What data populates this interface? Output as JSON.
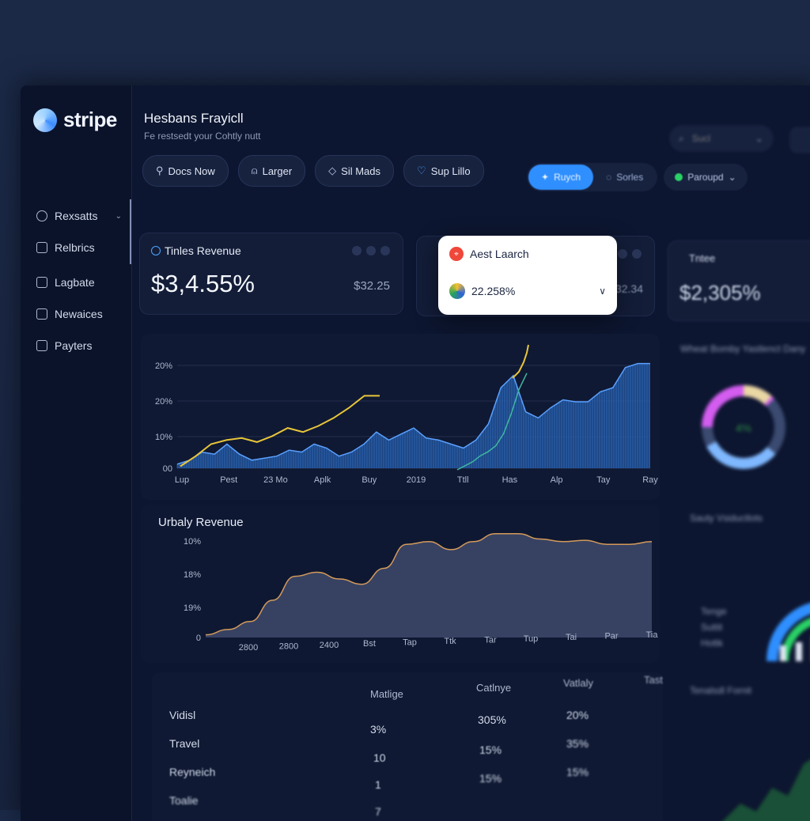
{
  "brand": {
    "name": "stripe"
  },
  "header": {
    "title": "Hesbans Frayicll",
    "subtitle": "Fe restsedt your Cohtly nutt"
  },
  "toolbar": {
    "pills": [
      {
        "label": "Docs Now",
        "icon": "wrench-icon"
      },
      {
        "label": "Larger",
        "icon": "bell-icon"
      },
      {
        "label": "Sil Mads",
        "icon": "diamond-icon"
      },
      {
        "label": "Sup Lillo",
        "icon": "heart-icon"
      }
    ]
  },
  "topbar": {
    "segment": [
      "Ruych",
      "Sorles"
    ],
    "status": "Paroupd",
    "search_placeholder": "Sucl"
  },
  "sidebar": {
    "items": [
      {
        "label": "Rexsatts",
        "icon": "target-icon"
      },
      {
        "label": "Relbrics",
        "icon": "document-icon"
      },
      {
        "label": "Lagbate",
        "icon": "clipboard-icon"
      },
      {
        "label": "Newaices",
        "icon": "card-icon"
      },
      {
        "label": "Payters",
        "icon": "wallet-icon"
      }
    ]
  },
  "cards": {
    "revenue": {
      "label": "Tinles Revenue",
      "value": "$3,4.55%",
      "secondary": "$32.25"
    },
    "middle": {
      "secondary": "32.34"
    },
    "right": {
      "label": "Tntee",
      "value": "$2,305%"
    }
  },
  "popup": {
    "title": "Aest Laarch",
    "value": "22.258%"
  },
  "chart1": {
    "y_ticks": [
      "20%",
      "20%",
      "10%",
      "00"
    ],
    "x_ticks": [
      "Lup",
      "Pest",
      "23 Mo",
      "Aplk",
      "Buy",
      "2019",
      "Ttll",
      "Has",
      "Alp",
      "Tay",
      "Ray"
    ]
  },
  "chart2": {
    "title": "Urbaly Revenue",
    "y_ticks": [
      "10%",
      "18%",
      "19%",
      "0"
    ],
    "x_ticks": [
      "2800",
      "2800",
      "2400",
      "Bst",
      "Tap",
      "Ttk",
      "Tar",
      "Tup",
      "Tai",
      "Par",
      "Tia"
    ]
  },
  "right_panel": {
    "donut_title": "Wheat Bomby Yastlenct Dany",
    "donut_center": "4%",
    "gauge_title": "Sauty Vsiductlots",
    "gauge_labels": [
      "Tenge",
      "Suttit",
      "Hottk"
    ],
    "bottom_title": "Tenalsdl Fornit"
  },
  "table": {
    "headers": [
      "Matlige",
      "Catlnye",
      "Vatlaly",
      "Tast"
    ],
    "rows": [
      {
        "label": "Vidisl",
        "values": [
          "3%",
          "305%",
          "20%"
        ]
      },
      {
        "label": "Travel",
        "values": [
          "10",
          "15%",
          "35%"
        ]
      },
      {
        "label": "Reyneich",
        "values": [
          "1",
          "15%",
          "15%"
        ]
      },
      {
        "label": "Toalie",
        "values": [
          "7",
          "",
          ""
        ]
      }
    ]
  },
  "chart_data": [
    {
      "type": "area",
      "y_tick_labels": [
        "20%",
        "20%",
        "10%",
        "00"
      ],
      "x_tick_labels": [
        "Lup",
        "Pest",
        "23 Mo",
        "Aplk",
        "Buy",
        "2019",
        "Ttll",
        "Has",
        "Alp",
        "Tay",
        "Ray"
      ],
      "series": [
        {
          "values": [
            2,
            4,
            8,
            7,
            12,
            7,
            4,
            5,
            6,
            9,
            8,
            12,
            10,
            6,
            8,
            12,
            18,
            14,
            17,
            20,
            15,
            14,
            12,
            10,
            14,
            22,
            40,
            46,
            28,
            25,
            30,
            34,
            33,
            33,
            38,
            40,
            50,
            52,
            52
          ]
        },
        {
          "values": [
            1,
            6,
            12,
            14,
            15,
            13,
            16,
            20,
            18,
            21,
            25,
            30,
            36,
            36
          ]
        }
      ],
      "secondary_line": [
        0,
        2,
        4,
        7,
        9,
        12,
        18,
        28,
        40,
        48
      ]
    },
    {
      "type": "area",
      "title": "Urbaly Revenue",
      "y_tick_labels": [
        "10%",
        "18%",
        "19%",
        "0"
      ],
      "x_tick_labels": [
        "2800",
        "2800",
        "2400",
        "Bst",
        "Tap",
        "Ttk",
        "Tar",
        "Tup",
        "Tai",
        "Par",
        "Tia"
      ],
      "values": [
        2,
        6,
        12,
        28,
        46,
        49,
        44,
        40,
        52,
        70,
        72,
        66,
        72,
        78,
        78,
        74,
        72,
        73,
        70,
        70,
        72
      ]
    }
  ]
}
